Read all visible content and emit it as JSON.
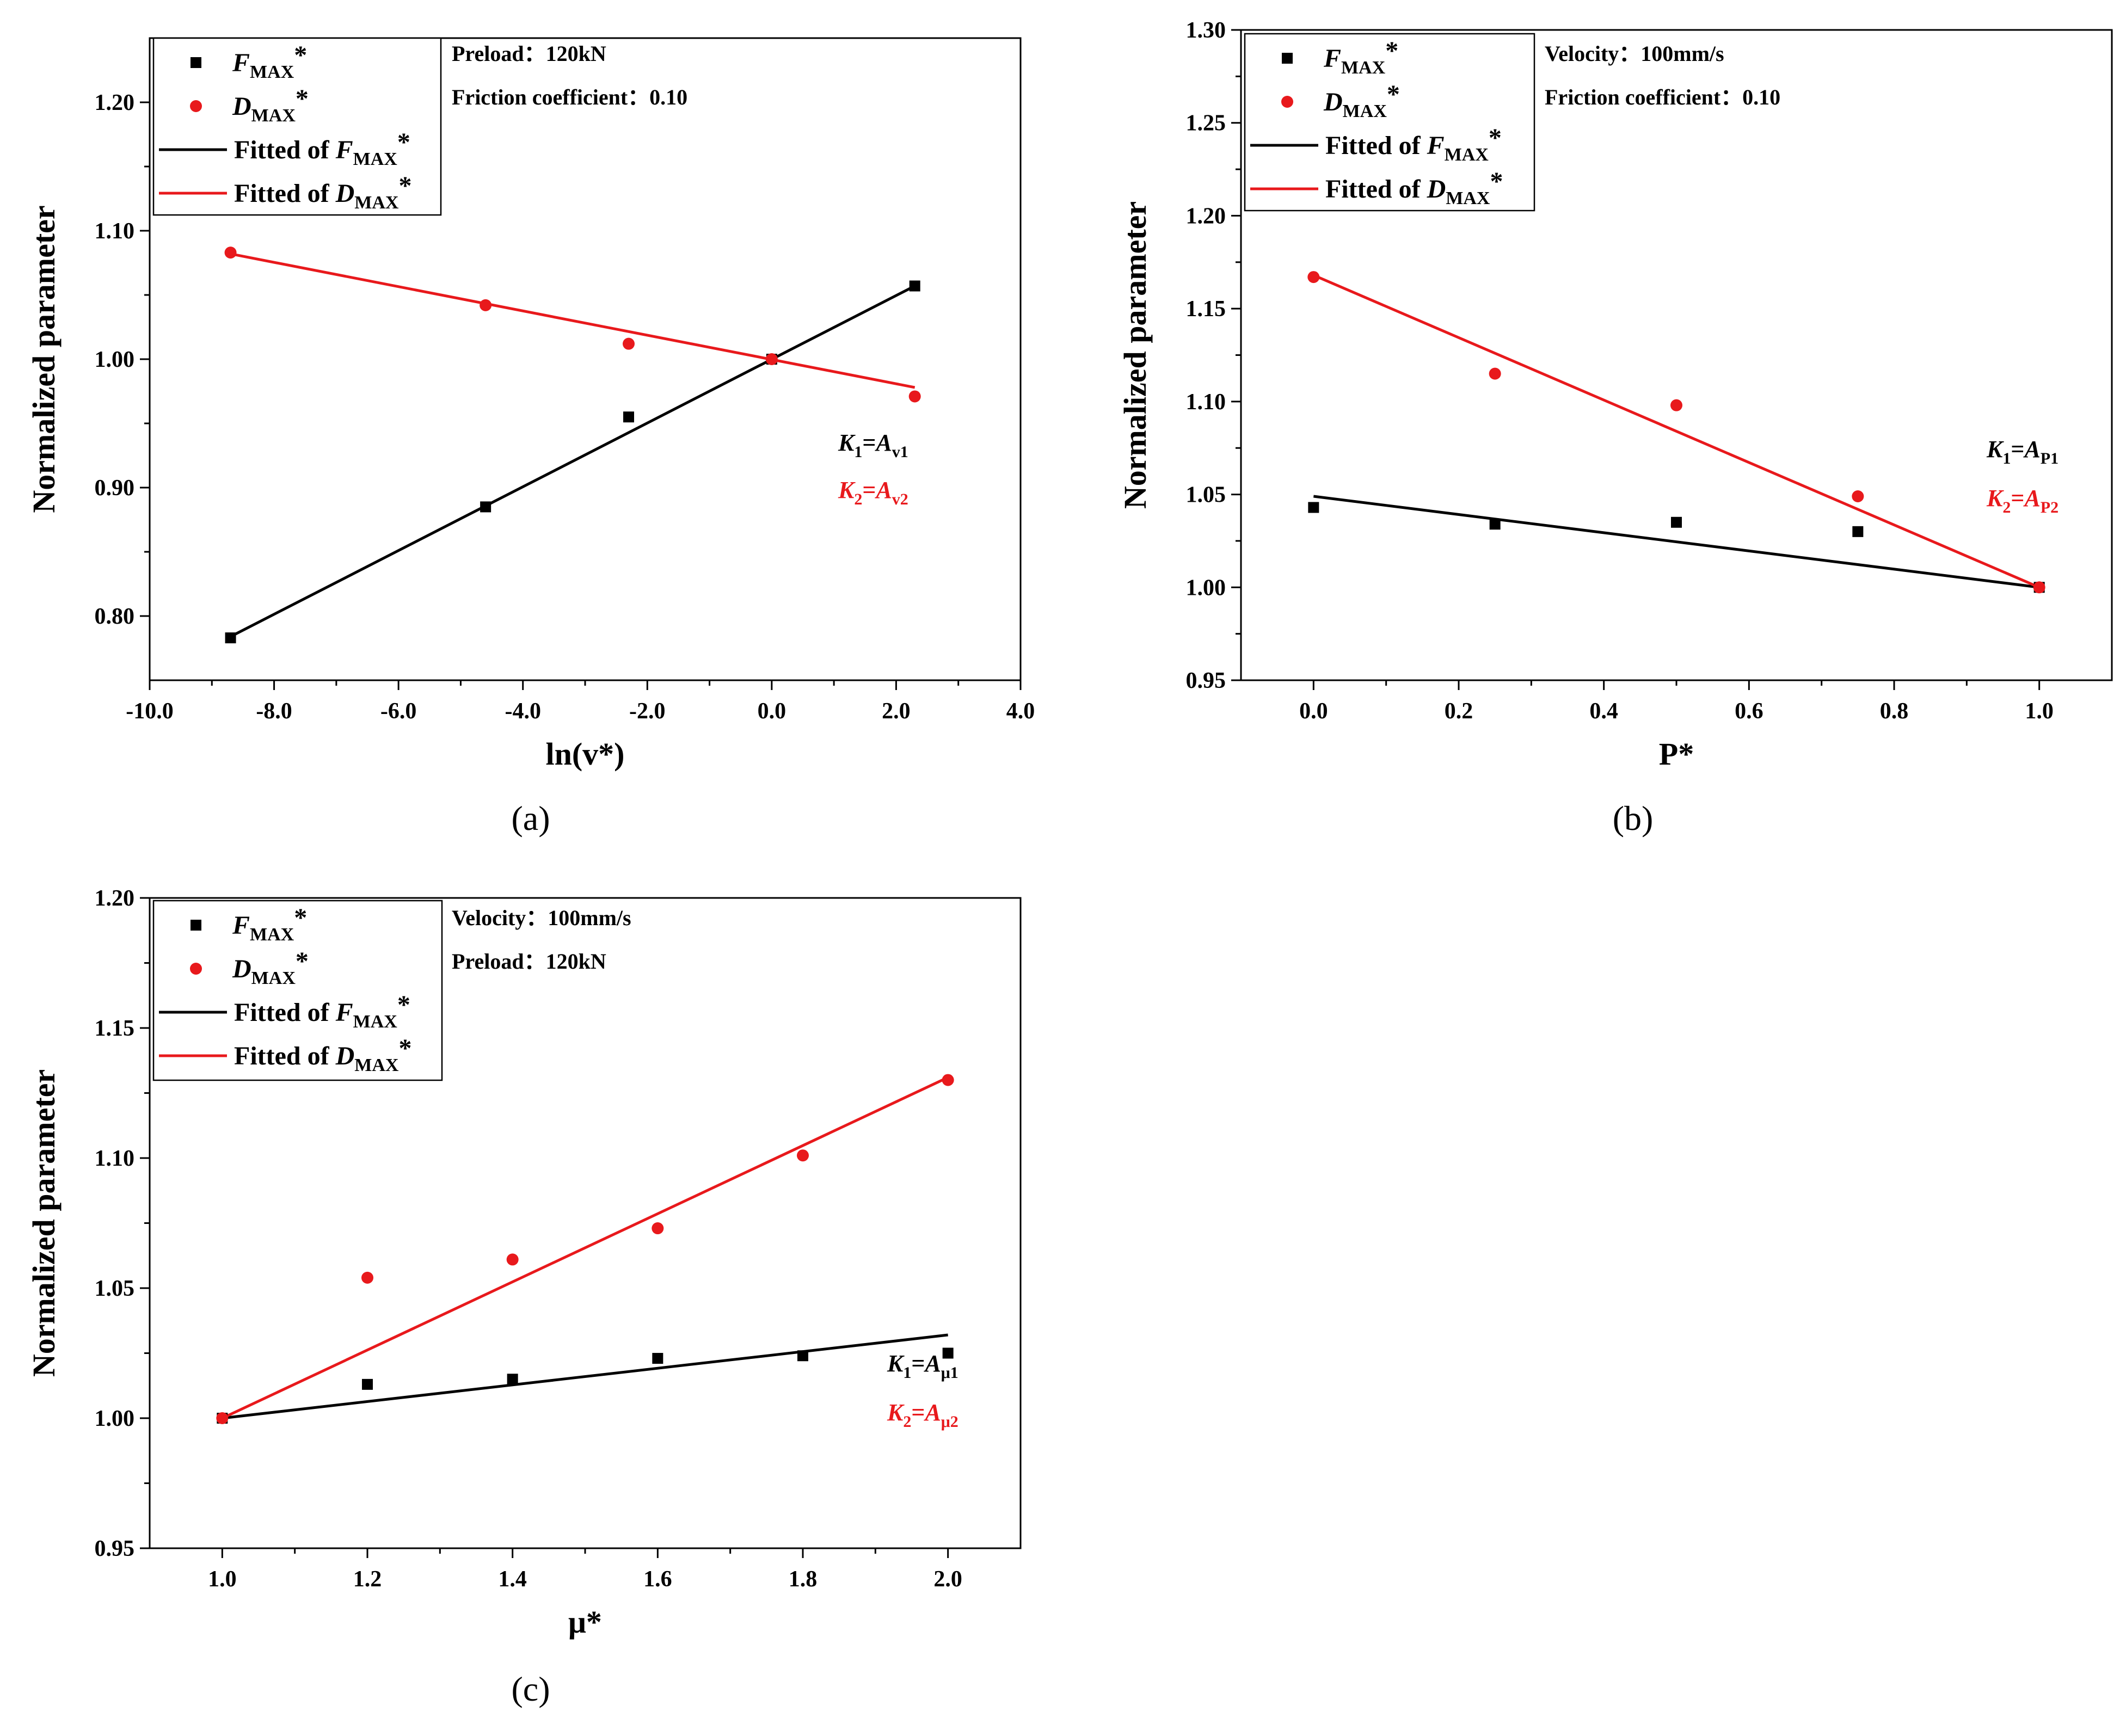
{
  "chart_data": [
    {
      "type": "scatter",
      "panel_label": "(a)",
      "xlabel": "ln(v*)",
      "ylabel": "Normalized parameter",
      "xlim": [
        -10.0,
        4.0
      ],
      "ylim": [
        0.75,
        1.25
      ],
      "xticks": [
        "-10.0",
        "-8.0",
        "-6.0",
        "-4.0",
        "-2.0",
        "0.0",
        "2.0",
        "4.0"
      ],
      "yticks": [
        "0.80",
        "0.90",
        "1.00",
        "1.10",
        "1.20"
      ],
      "legend": {
        "position": "top-left",
        "entries": [
          {
            "symbol": "square",
            "main": "F",
            "sub": "MAX",
            "tail": "*"
          },
          {
            "symbol": "circle",
            "main": "D",
            "sub": "MAX",
            "tail": "*"
          },
          {
            "symbol": "line-black",
            "pre": "Fitted of ",
            "main": "F",
            "sub": "MAX",
            "tail": "*"
          },
          {
            "symbol": "line-red",
            "pre": "Fitted of ",
            "main": "D",
            "sub": "MAX",
            "tail": "*"
          }
        ]
      },
      "conditions": [
        "Preload：120kN",
        "Friction coefficient：0.10"
      ],
      "k_labels": [
        {
          "k": "K",
          "ksub": "1",
          "a": "A",
          "asub": "v1",
          "color": "#000000"
        },
        {
          "k": "K",
          "ksub": "2",
          "a": "A",
          "asub": "v2",
          "color": "#e8191c"
        }
      ],
      "series": [
        {
          "name": "FMAX*",
          "color": "#000000",
          "marker": "square",
          "x": [
            -8.7,
            -4.6,
            -2.3,
            0.0,
            2.3
          ],
          "y": [
            0.783,
            0.885,
            0.955,
            1.0,
            1.057
          ],
          "fit": {
            "x": [
              -8.7,
              2.3
            ],
            "y": [
              0.784,
              1.057
            ]
          }
        },
        {
          "name": "DMAX*",
          "color": "#e8191c",
          "marker": "circle",
          "x": [
            -8.7,
            -4.6,
            -2.3,
            0.0,
            2.3
          ],
          "y": [
            1.083,
            1.042,
            1.012,
            1.0,
            0.971
          ],
          "fit": {
            "x": [
              -8.7,
              2.3
            ],
            "y": [
              1.082,
              0.978
            ]
          }
        }
      ]
    },
    {
      "type": "scatter",
      "panel_label": "(b)",
      "xlabel": "P*",
      "ylabel": "Normalized parameter",
      "xlim": [
        -0.1,
        1.1
      ],
      "ylim": [
        0.95,
        1.3
      ],
      "xticks": [
        "0.0",
        "0.2",
        "0.4",
        "0.6",
        "0.8",
        "1.0"
      ],
      "yticks": [
        "0.95",
        "1.00",
        "1.05",
        "1.10",
        "1.15",
        "1.20",
        "1.25",
        "1.30"
      ],
      "legend": {
        "position": "top-left",
        "entries": [
          {
            "symbol": "square",
            "main": "F",
            "sub": "MAX",
            "tail": "*"
          },
          {
            "symbol": "circle",
            "main": "D",
            "sub": "MAX",
            "tail": "*"
          },
          {
            "symbol": "line-black",
            "pre": "Fitted of ",
            "main": "F",
            "sub": "MAX",
            "tail": "*"
          },
          {
            "symbol": "line-red",
            "pre": "Fitted of ",
            "main": "D",
            "sub": "MAX",
            "tail": "*"
          }
        ]
      },
      "conditions": [
        "Velocity：100mm/s",
        "Friction coefficient：0.10"
      ],
      "k_labels": [
        {
          "k": "K",
          "ksub": "1",
          "a": "A",
          "asub": "P1",
          "color": "#000000"
        },
        {
          "k": "K",
          "ksub": "2",
          "a": "A",
          "asub": "P2",
          "color": "#e8191c"
        }
      ],
      "series": [
        {
          "name": "FMAX*",
          "color": "#000000",
          "marker": "square",
          "x": [
            0.0,
            0.25,
            0.5,
            0.75,
            1.0
          ],
          "y": [
            1.043,
            1.034,
            1.035,
            1.03,
            1.0
          ],
          "fit": {
            "x": [
              0.0,
              1.0
            ],
            "y": [
              1.049,
              1.0
            ]
          }
        },
        {
          "name": "DMAX*",
          "color": "#e8191c",
          "marker": "circle",
          "x": [
            0.0,
            0.25,
            0.5,
            0.75,
            1.0
          ],
          "y": [
            1.167,
            1.115,
            1.098,
            1.049,
            1.0
          ],
          "fit": {
            "x": [
              0.0,
              1.0
            ],
            "y": [
              1.168,
              1.0
            ]
          }
        }
      ]
    },
    {
      "type": "scatter",
      "panel_label": "(c)",
      "xlabel": "μ*",
      "ylabel": "Normalized parameter",
      "xlim": [
        0.9,
        2.1
      ],
      "ylim": [
        0.95,
        1.2
      ],
      "xticks": [
        "1.0",
        "1.2",
        "1.4",
        "1.6",
        "1.8",
        "2.0"
      ],
      "yticks": [
        "0.95",
        "1.00",
        "1.05",
        "1.10",
        "1.15",
        "1.20"
      ],
      "legend": {
        "position": "top-left",
        "entries": [
          {
            "symbol": "square",
            "main": "F",
            "sub": "MAX",
            "tail": "*"
          },
          {
            "symbol": "circle",
            "main": "D",
            "sub": "MAX",
            "tail": "*"
          },
          {
            "symbol": "line-black",
            "pre": "Fitted of ",
            "main": "F",
            "sub": "MAX",
            "tail": "*"
          },
          {
            "symbol": "line-red",
            "pre": "Fitted of ",
            "main": "D",
            "sub": "MAX",
            "tail": "*"
          }
        ]
      },
      "conditions": [
        "Velocity：100mm/s",
        "Preload：120kN"
      ],
      "k_labels": [
        {
          "k": "K",
          "ksub": "1",
          "a": "A",
          "asub": "μ1",
          "color": "#000000"
        },
        {
          "k": "K",
          "ksub": "2",
          "a": "A",
          "asub": "μ2",
          "color": "#e8191c"
        }
      ],
      "series": [
        {
          "name": "FMAX*",
          "color": "#000000",
          "marker": "square",
          "x": [
            1.0,
            1.2,
            1.4,
            1.6,
            1.8,
            2.0
          ],
          "y": [
            1.0,
            1.013,
            1.015,
            1.023,
            1.024,
            1.025
          ],
          "fit": {
            "x": [
              1.0,
              2.0
            ],
            "y": [
              1.0,
              1.032
            ]
          }
        },
        {
          "name": "DMAX*",
          "color": "#e8191c",
          "marker": "circle",
          "x": [
            1.0,
            1.2,
            1.4,
            1.6,
            1.8,
            2.0
          ],
          "y": [
            1.0,
            1.054,
            1.061,
            1.073,
            1.101,
            1.13
          ],
          "fit": {
            "x": [
              1.0,
              2.0
            ],
            "y": [
              1.0,
              1.131
            ]
          }
        }
      ]
    }
  ]
}
